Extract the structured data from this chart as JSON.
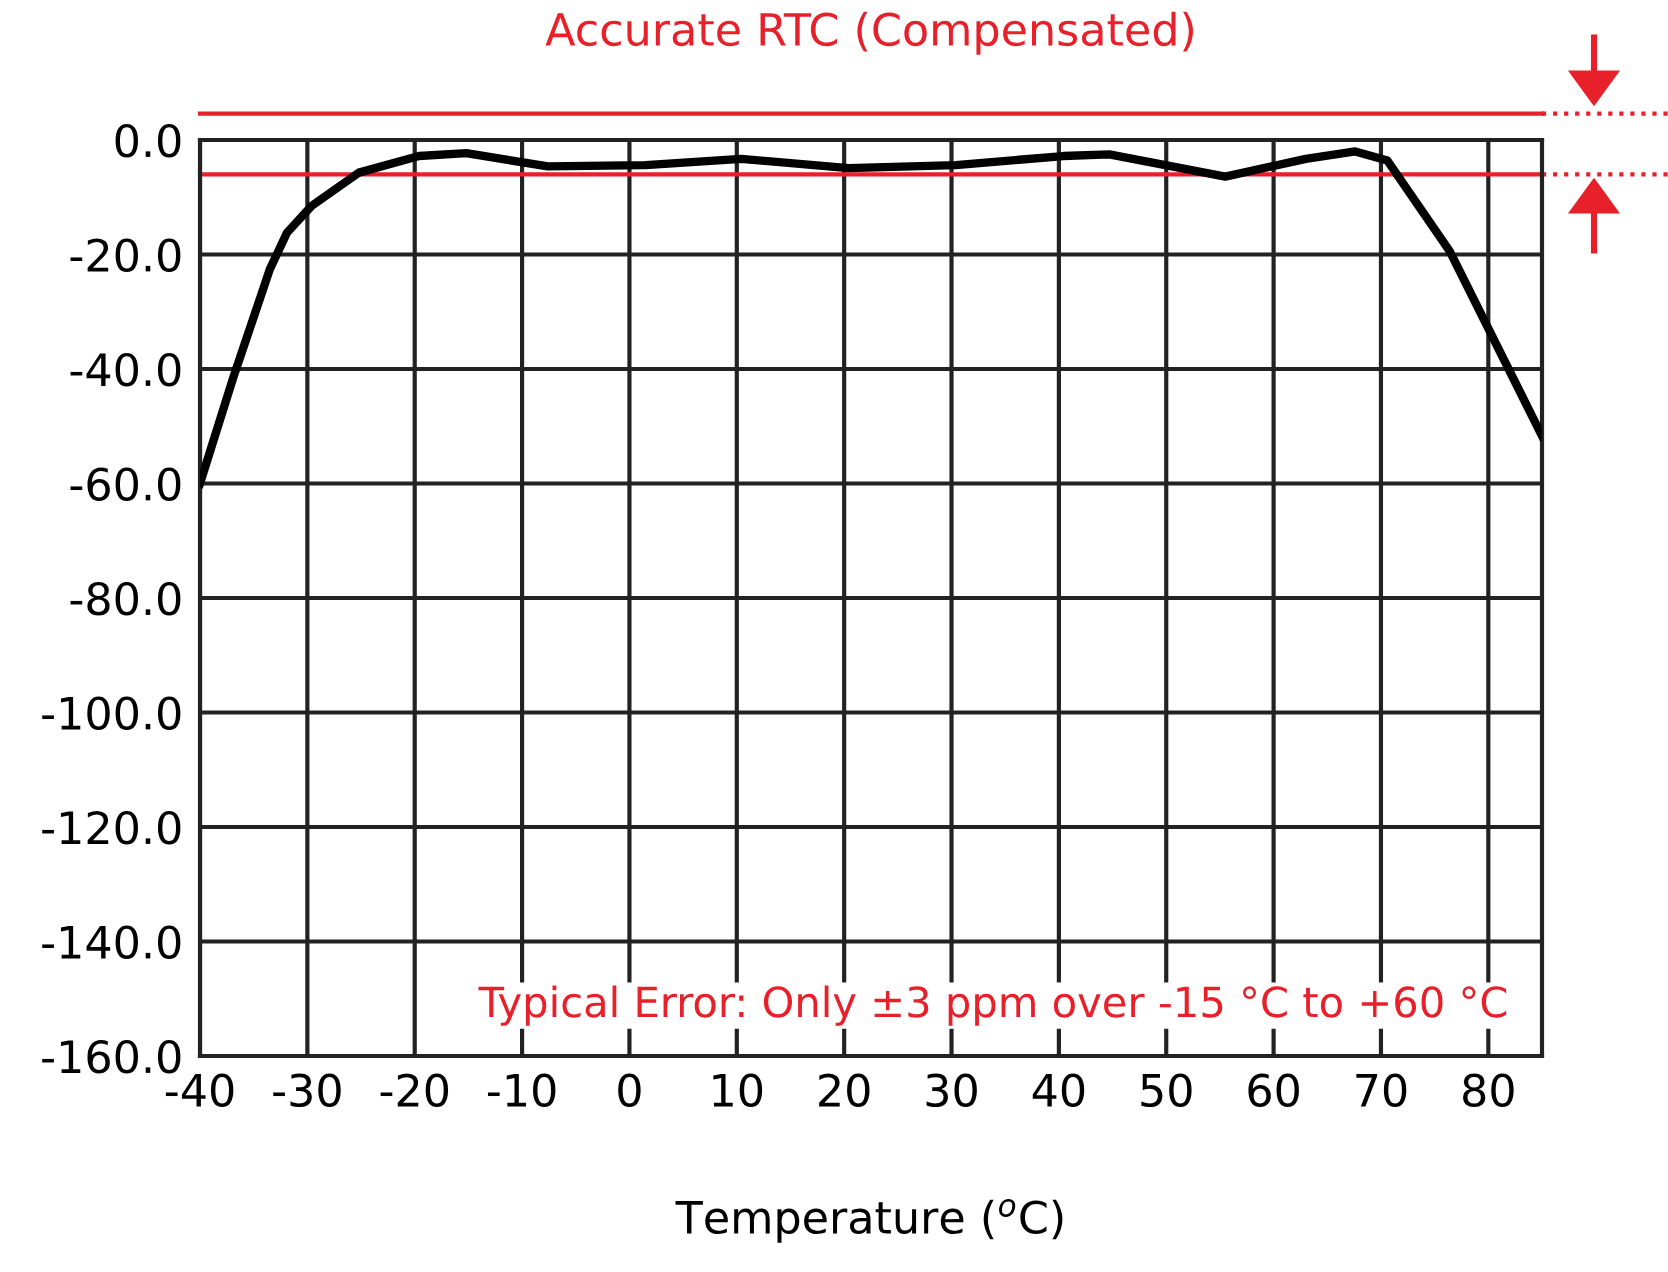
{
  "chart_data": {
    "type": "line",
    "title": "Accurate RTC (Compensated)",
    "xlabel": "Temperature ($^{o}$C)",
    "x": [
      -40,
      -36.9,
      -33.5,
      -31.9,
      -29.6,
      -25.2,
      -19.6,
      -15.2,
      -7.6,
      1.5,
      10.4,
      20.4,
      30.4,
      40.4,
      44.7,
      55.5,
      63,
      67.6,
      70.6,
      76.4,
      85
    ],
    "series": [
      {
        "color": "#000000",
        "values": [
          -60,
          -41.5,
          -22.6,
          -16.2,
          -11.5,
          -5.7,
          -2.8,
          -2.3,
          -4.6,
          -4.4,
          -3.3,
          -4.9,
          -4.4,
          -2.8,
          -2.5,
          -6.4,
          -3.3,
          -2.0,
          -3.6,
          -19.4,
          -51.7
        ]
      }
    ],
    "xlim": [
      -40,
      85
    ],
    "xticks": [
      -40,
      -30,
      -20,
      -10,
      0,
      10,
      20,
      30,
      40,
      50,
      60,
      70,
      80
    ],
    "ylim": [
      -160,
      0
    ],
    "yticks": [
      {
        "value": 0,
        "label": "0.0"
      },
      {
        "value": -20,
        "label": "-20.0"
      },
      {
        "value": -40,
        "label": "-40.0"
      },
      {
        "value": -60,
        "label": "-60.0"
      },
      {
        "value": -80,
        "label": "-80.0"
      },
      {
        "value": -100,
        "label": "-100.0"
      },
      {
        "value": -120,
        "label": "-120.0"
      },
      {
        "value": -140,
        "label": "-140.0"
      },
      {
        "value": -160,
        "label": "-160.0"
      }
    ],
    "grid": true,
    "marker": "none",
    "line_style": "solid",
    "ref_lines": [
      {
        "axis": "y",
        "value": 4.6,
        "color": "#e8202a"
      },
      {
        "axis": "y",
        "value": -6,
        "color": "#e8202a"
      }
    ],
    "annotations": [
      "Typical Error: Only ±3 ppm over -15 °C to +60 °C"
    ]
  }
}
